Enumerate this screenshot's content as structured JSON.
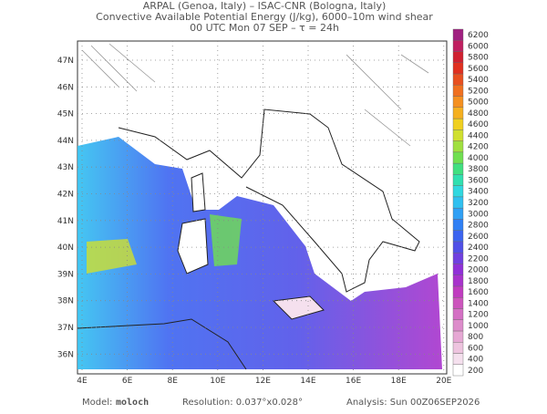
{
  "header": {
    "line1": "ARPAL (Genoa, Italy)  –  ISAC-CNR (Bologna, Italy)",
    "line2": "Convective Available Potential Energy (J/kg), 6000–10m wind shear",
    "line3": "00 UTC Mon 07 SEP  –  τ = 24h"
  },
  "map": {
    "lat_labels": [
      "47N",
      "46N",
      "45N",
      "44N",
      "43N",
      "42N",
      "41N",
      "40N",
      "39N",
      "38N",
      "37N",
      "36N"
    ],
    "lon_labels": [
      "4E",
      "6E",
      "8E",
      "10E",
      "12E",
      "14E",
      "16E",
      "18E",
      "20E"
    ]
  },
  "colorbar": {
    "ticks": [
      200,
      400,
      600,
      800,
      1000,
      1200,
      1400,
      1600,
      1800,
      2000,
      2200,
      2400,
      2600,
      2800,
      3000,
      3200,
      3400,
      3600,
      3800,
      4000,
      4200,
      4400,
      4600,
      4800,
      5000,
      5200,
      5400,
      5600,
      5800,
      6000,
      6200
    ],
    "colors": [
      "#ffffff",
      "#f5e0ee",
      "#eec4df",
      "#e6a8d4",
      "#dd8ccb",
      "#d470c4",
      "#cc55bd",
      "#c03cc0",
      "#a833cc",
      "#9030d8",
      "#7040e0",
      "#5050e8",
      "#3c64f0",
      "#3080f5",
      "#30a0f5",
      "#30c0f0",
      "#30d8e0",
      "#30e0b0",
      "#40e080",
      "#70e050",
      "#a0e040",
      "#d0e030",
      "#f0d020",
      "#f5b020",
      "#f59020",
      "#f07020",
      "#e85020",
      "#e03020",
      "#d02030",
      "#c02060",
      "#a02080"
    ]
  },
  "footer": {
    "model_label": "Model:",
    "model": "moloch",
    "resolution": "Resolution: 0.037°x0.028°",
    "analysis": "Analysis: Sun 00Z06SEP2026"
  }
}
